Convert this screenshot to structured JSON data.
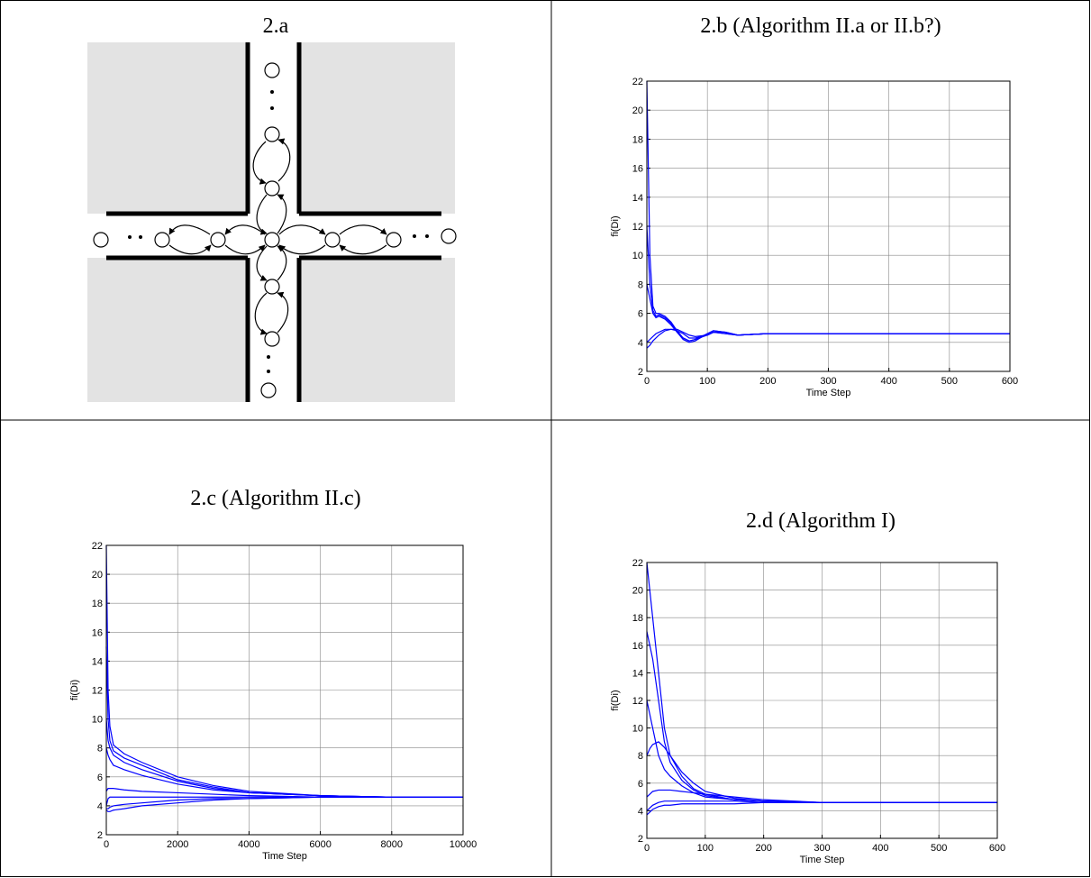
{
  "diagram": {
    "title": "2.a"
  },
  "chart_data": [
    {
      "type": "line",
      "title": "2.b (Algorithm II.a or II.b?)",
      "xlabel": "Time Step",
      "ylabel": "fi(Di)",
      "x": [
        0,
        5,
        10,
        15,
        20,
        30,
        40,
        50,
        60,
        70,
        80,
        100,
        110,
        130,
        150,
        200,
        300,
        400,
        500,
        600
      ],
      "xlim": [
        0,
        600
      ],
      "xticks": [
        0,
        100,
        200,
        300,
        400,
        500,
        600
      ],
      "ylim": [
        2,
        22
      ],
      "yticks": [
        2,
        4,
        6,
        8,
        10,
        12,
        14,
        16,
        18,
        20,
        22
      ],
      "grid": true,
      "series": [
        {
          "color": "#0000ff",
          "values": [
            22,
            10,
            6.5,
            6.0,
            6.0,
            5.8,
            5.4,
            4.8,
            4.3,
            4.1,
            4.2,
            4.6,
            4.8,
            4.7,
            4.5,
            4.6,
            4.6,
            4.6,
            4.6,
            4.6
          ]
        },
        {
          "color": "#0000ff",
          "values": [
            12,
            8,
            6.2,
            5.8,
            5.9,
            5.7,
            5.3,
            4.7,
            4.2,
            4.0,
            4.1,
            4.6,
            4.8,
            4.7,
            4.5,
            4.6,
            4.6,
            4.6,
            4.6,
            4.6
          ]
        },
        {
          "color": "#0000ff",
          "values": [
            8,
            7,
            6.0,
            5.7,
            5.8,
            5.6,
            5.2,
            4.7,
            4.3,
            4.1,
            4.2,
            4.5,
            4.7,
            4.7,
            4.5,
            4.6,
            4.6,
            4.6,
            4.6,
            4.6
          ]
        },
        {
          "color": "#0000ff",
          "values": [
            3.6,
            3.8,
            4.1,
            4.3,
            4.5,
            4.8,
            4.9,
            4.9,
            4.7,
            4.5,
            4.4,
            4.5,
            4.7,
            4.6,
            4.5,
            4.6,
            4.6,
            4.6,
            4.6,
            4.6
          ]
        },
        {
          "color": "#0000ff",
          "values": [
            4,
            4.2,
            4.4,
            4.6,
            4.7,
            4.9,
            4.9,
            4.8,
            4.6,
            4.3,
            4.3,
            4.5,
            4.7,
            4.6,
            4.5,
            4.6,
            4.6,
            4.6,
            4.6,
            4.6
          ]
        }
      ]
    },
    {
      "type": "line",
      "title": "2.c (Algorithm II.c)",
      "xlabel": "Time Step",
      "ylabel": "fi(Di)",
      "x": [
        0,
        50,
        100,
        200,
        500,
        1000,
        2000,
        3000,
        4000,
        6000,
        8000,
        10000
      ],
      "xlim": [
        0,
        10000
      ],
      "xticks": [
        0,
        2000,
        4000,
        6000,
        8000,
        10000
      ],
      "ylim": [
        2,
        22
      ],
      "yticks": [
        2,
        4,
        6,
        8,
        10,
        12,
        14,
        16,
        18,
        20,
        22
      ],
      "grid": true,
      "series": [
        {
          "color": "#0000ff",
          "values": [
            22,
            12,
            9.5,
            8.2,
            7.6,
            7,
            6,
            5.4,
            5,
            4.7,
            4.6,
            4.6
          ]
        },
        {
          "color": "#0000ff",
          "values": [
            15,
            10,
            8.5,
            7.8,
            7.3,
            6.8,
            5.8,
            5.3,
            4.9,
            4.7,
            4.6,
            4.6
          ]
        },
        {
          "color": "#0000ff",
          "values": [
            10,
            8.5,
            8,
            7.5,
            7,
            6.5,
            5.7,
            5.2,
            4.9,
            4.7,
            4.6,
            4.6
          ]
        },
        {
          "color": "#0000ff",
          "values": [
            8,
            7.5,
            7.2,
            6.8,
            6.5,
            6.1,
            5.5,
            5.1,
            4.9,
            4.7,
            4.6,
            4.6
          ]
        },
        {
          "color": "#0000ff",
          "values": [
            5,
            5.2,
            5.2,
            5.2,
            5.1,
            5,
            4.9,
            4.8,
            4.7,
            4.6,
            4.6,
            4.6
          ]
        },
        {
          "color": "#0000ff",
          "values": [
            4,
            4.5,
            4.6,
            4.6,
            4.6,
            4.6,
            4.6,
            4.6,
            4.6,
            4.6,
            4.6,
            4.6
          ]
        },
        {
          "color": "#0000ff",
          "values": [
            3.8,
            3.8,
            3.9,
            4,
            4.1,
            4.2,
            4.4,
            4.5,
            4.5,
            4.6,
            4.6,
            4.6
          ]
        },
        {
          "color": "#0000ff",
          "values": [
            3.7,
            3.6,
            3.6,
            3.7,
            3.8,
            4,
            4.2,
            4.4,
            4.5,
            4.6,
            4.6,
            4.6
          ]
        }
      ]
    },
    {
      "type": "line",
      "title": "2.d (Algorithm I)",
      "xlabel": "Time Step",
      "ylabel": "fi(Di)",
      "x": [
        0,
        5,
        10,
        20,
        30,
        40,
        60,
        80,
        100,
        150,
        200,
        300,
        400,
        600
      ],
      "xlim": [
        0,
        600
      ],
      "xticks": [
        0,
        100,
        200,
        300,
        400,
        500,
        600
      ],
      "ylim": [
        2,
        22
      ],
      "yticks": [
        2,
        4,
        6,
        8,
        10,
        12,
        14,
        16,
        18,
        20,
        22
      ],
      "grid": true,
      "series": [
        {
          "color": "#0000ff",
          "values": [
            22,
            20,
            18,
            14,
            10,
            8,
            6.5,
            5.6,
            5.2,
            4.8,
            4.7,
            4.6,
            4.6,
            4.6
          ]
        },
        {
          "color": "#0000ff",
          "values": [
            17,
            16,
            15,
            12,
            9,
            7.5,
            6.2,
            5.5,
            5.1,
            4.8,
            4.7,
            4.6,
            4.6,
            4.6
          ]
        },
        {
          "color": "#0000ff",
          "values": [
            12,
            11,
            10,
            8,
            7,
            6.5,
            5.8,
            5.3,
            5,
            4.8,
            4.7,
            4.6,
            4.6,
            4.6
          ]
        },
        {
          "color": "#0000ff",
          "values": [
            8,
            8.5,
            8.8,
            9,
            8.6,
            8,
            6.8,
            6,
            5.4,
            4.9,
            4.7,
            4.6,
            4.6,
            4.6
          ]
        },
        {
          "color": "#0000ff",
          "values": [
            5,
            5.2,
            5.4,
            5.5,
            5.5,
            5.5,
            5.4,
            5.3,
            5.2,
            5,
            4.8,
            4.6,
            4.6,
            4.6
          ]
        },
        {
          "color": "#0000ff",
          "values": [
            4,
            4.2,
            4.4,
            4.6,
            4.7,
            4.7,
            4.7,
            4.7,
            4.7,
            4.7,
            4.6,
            4.6,
            4.6,
            4.6
          ]
        },
        {
          "color": "#0000ff",
          "values": [
            3.7,
            3.9,
            4.1,
            4.3,
            4.4,
            4.4,
            4.5,
            4.5,
            4.5,
            4.5,
            4.6,
            4.6,
            4.6,
            4.6
          ]
        }
      ]
    }
  ]
}
